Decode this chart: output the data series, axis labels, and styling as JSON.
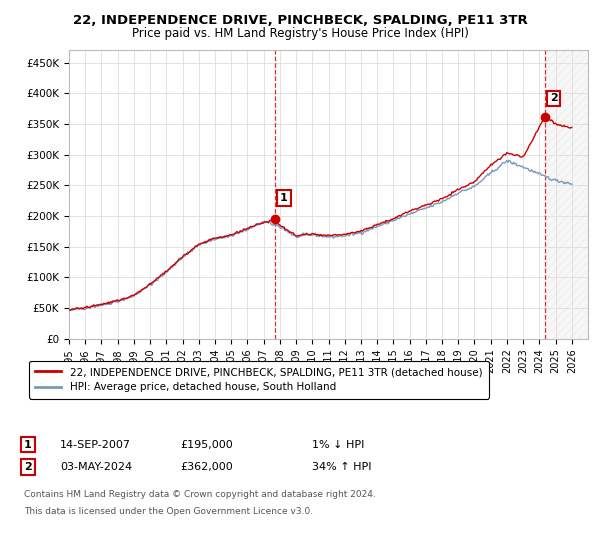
{
  "title": "22, INDEPENDENCE DRIVE, PINCHBECK, SPALDING, PE11 3TR",
  "subtitle": "Price paid vs. HM Land Registry's House Price Index (HPI)",
  "title_fontsize": 9.5,
  "subtitle_fontsize": 8.5,
  "ylim": [
    0,
    470000
  ],
  "yticks": [
    0,
    50000,
    100000,
    150000,
    200000,
    250000,
    300000,
    350000,
    400000,
    450000
  ],
  "ytick_labels": [
    "£0",
    "£50K",
    "£100K",
    "£150K",
    "£200K",
    "£250K",
    "£300K",
    "£350K",
    "£400K",
    "£450K"
  ],
  "sale1": {
    "year": 2007.71,
    "price": 195000,
    "label": "1",
    "date": "14-SEP-2007",
    "price_str": "£195,000",
    "pct": "1% ↓ HPI"
  },
  "sale2": {
    "year": 2024.34,
    "price": 362000,
    "label": "2",
    "date": "03-MAY-2024",
    "price_str": "£362,000",
    "pct": "34% ↑ HPI"
  },
  "line_color_red": "#cc0000",
  "line_color_blue": "#7799bb",
  "legend_entry1": "22, INDEPENDENCE DRIVE, PINCHBECK, SPALDING, PE11 3TR (detached house)",
  "legend_entry2": "HPI: Average price, detached house, South Holland",
  "footer1": "Contains HM Land Registry data © Crown copyright and database right 2024.",
  "footer2": "This data is licensed under the Open Government Licence v3.0.",
  "background_color": "#ffffff",
  "plot_bg_color": "#ffffff",
  "grid_color": "#dddddd",
  "xmin": 1995,
  "xmax": 2027,
  "hpi_anchors": [
    [
      1995,
      47000
    ],
    [
      1996,
      50000
    ],
    [
      1997,
      55000
    ],
    [
      1998,
      61000
    ],
    [
      1999,
      70000
    ],
    [
      2000,
      88000
    ],
    [
      2001,
      108000
    ],
    [
      2002,
      133000
    ],
    [
      2003,
      153000
    ],
    [
      2004,
      163000
    ],
    [
      2005,
      168000
    ],
    [
      2006,
      178000
    ],
    [
      2007,
      191000
    ],
    [
      2008,
      183000
    ],
    [
      2009,
      166000
    ],
    [
      2010,
      170000
    ],
    [
      2011,
      166000
    ],
    [
      2012,
      168000
    ],
    [
      2013,
      173000
    ],
    [
      2014,
      183000
    ],
    [
      2015,
      193000
    ],
    [
      2016,
      203000
    ],
    [
      2017,
      213000
    ],
    [
      2018,
      223000
    ],
    [
      2019,
      238000
    ],
    [
      2020,
      248000
    ],
    [
      2021,
      270000
    ],
    [
      2022,
      290000
    ],
    [
      2023,
      280000
    ],
    [
      2024,
      268000
    ],
    [
      2025,
      258000
    ],
    [
      2026,
      253000
    ]
  ],
  "price_anchors": [
    [
      1995,
      47000
    ],
    [
      1996,
      51000
    ],
    [
      1997,
      56000
    ],
    [
      1998,
      62000
    ],
    [
      1999,
      71000
    ],
    [
      2000,
      89000
    ],
    [
      2001,
      110000
    ],
    [
      2002,
      134000
    ],
    [
      2003,
      154000
    ],
    [
      2004,
      164000
    ],
    [
      2005,
      169000
    ],
    [
      2006,
      180000
    ],
    [
      2007.71,
      195000
    ],
    [
      2008,
      185000
    ],
    [
      2009,
      168000
    ],
    [
      2010,
      171000
    ],
    [
      2011,
      168000
    ],
    [
      2012,
      170000
    ],
    [
      2013,
      176000
    ],
    [
      2014,
      186000
    ],
    [
      2015,
      196000
    ],
    [
      2016,
      208000
    ],
    [
      2017,
      218000
    ],
    [
      2018,
      228000
    ],
    [
      2019,
      243000
    ],
    [
      2020,
      256000
    ],
    [
      2021,
      283000
    ],
    [
      2022,
      303000
    ],
    [
      2023,
      296000
    ],
    [
      2024.34,
      362000
    ],
    [
      2025,
      350000
    ],
    [
      2026,
      343000
    ]
  ],
  "noise_seed": 42,
  "noise_hpi": 1200,
  "noise_price": 800
}
